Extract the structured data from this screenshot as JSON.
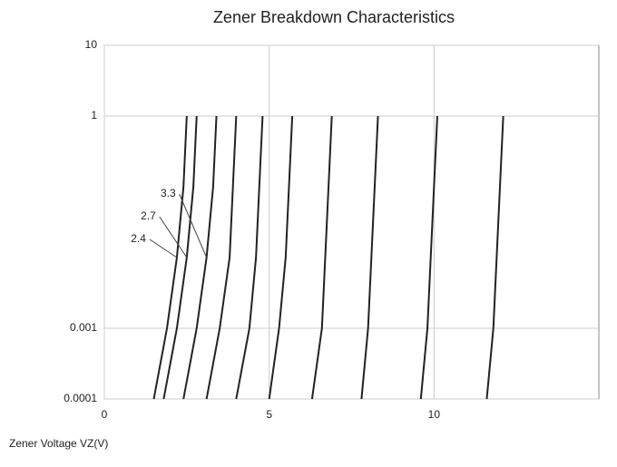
{
  "chart_data": {
    "type": "line",
    "title": "Zener Breakdown Characteristics",
    "x_label": "Zener Voltage   VZ(V)",
    "log_y": true,
    "grid": true,
    "color": "#222222",
    "xlim": [
      0,
      15
    ],
    "xticks": [
      0,
      5,
      10
    ],
    "ylim": [
      0.0001,
      10
    ],
    "yticks": [
      0.0001,
      0.001,
      1,
      10
    ],
    "series": [
      {
        "name": "2.4",
        "x": [
          1.5,
          1.9,
          2.2,
          2.4,
          2.5
        ],
        "values": [
          0.0001,
          0.001,
          0.01,
          0.1,
          1
        ]
      },
      {
        "name": "2.7",
        "x": [
          1.8,
          2.2,
          2.5,
          2.7,
          2.8
        ],
        "values": [
          0.0001,
          0.001,
          0.01,
          0.1,
          1
        ]
      },
      {
        "name": "3.3",
        "x": [
          2.4,
          2.8,
          3.1,
          3.3,
          3.4
        ],
        "values": [
          0.0001,
          0.001,
          0.01,
          0.1,
          1
        ]
      },
      {
        "x": [
          3.1,
          3.5,
          3.8,
          3.9,
          4.0
        ],
        "values": [
          0.0001,
          0.001,
          0.01,
          0.1,
          1
        ]
      },
      {
        "x": [
          4.0,
          4.4,
          4.6,
          4.7,
          4.8
        ],
        "values": [
          0.0001,
          0.001,
          0.01,
          0.1,
          1
        ]
      },
      {
        "x": [
          5.0,
          5.3,
          5.5,
          5.6,
          5.7
        ],
        "values": [
          0.0001,
          0.001,
          0.01,
          0.1,
          1
        ]
      },
      {
        "x": [
          6.3,
          6.6,
          6.7,
          6.8,
          6.9
        ],
        "values": [
          0.0001,
          0.001,
          0.01,
          0.1,
          1
        ]
      },
      {
        "x": [
          7.8,
          8.0,
          8.1,
          8.2,
          8.3
        ],
        "values": [
          0.0001,
          0.001,
          0.01,
          0.1,
          1
        ]
      },
      {
        "x": [
          9.6,
          9.8,
          9.9,
          10.0,
          10.1
        ],
        "values": [
          0.0001,
          0.001,
          0.01,
          0.1,
          1
        ]
      },
      {
        "x": [
          11.6,
          11.8,
          11.9,
          12.0,
          12.1
        ],
        "values": [
          0.0001,
          0.001,
          0.01,
          0.1,
          1
        ]
      }
    ]
  }
}
